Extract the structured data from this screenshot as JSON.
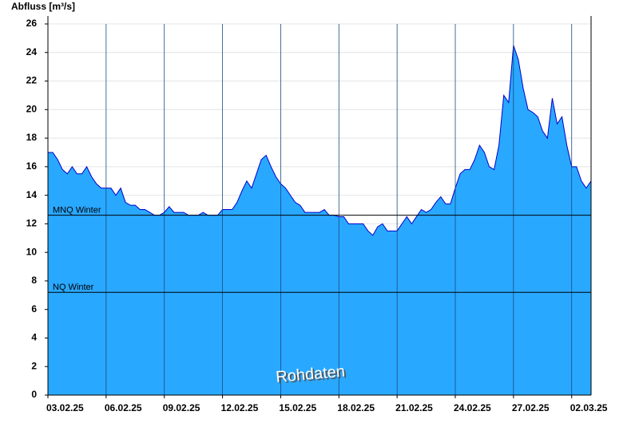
{
  "chart_data": {
    "type": "area",
    "y_label": "Abfluss [m³/s]",
    "watermark": "Rohdaten",
    "x": [
      "2025-02-03T00:00",
      "2025-02-03T06:00",
      "2025-02-03T12:00",
      "2025-02-03T18:00",
      "2025-02-04T00:00",
      "2025-02-04T06:00",
      "2025-02-04T12:00",
      "2025-02-04T18:00",
      "2025-02-05T00:00",
      "2025-02-05T06:00",
      "2025-02-05T12:00",
      "2025-02-05T18:00",
      "2025-02-06T00:00",
      "2025-02-06T06:00",
      "2025-02-06T12:00",
      "2025-02-06T18:00",
      "2025-02-07T00:00",
      "2025-02-07T06:00",
      "2025-02-07T12:00",
      "2025-02-07T18:00",
      "2025-02-08T00:00",
      "2025-02-08T06:00",
      "2025-02-08T12:00",
      "2025-02-08T18:00",
      "2025-02-09T00:00",
      "2025-02-09T06:00",
      "2025-02-09T12:00",
      "2025-02-09T18:00",
      "2025-02-10T00:00",
      "2025-02-10T06:00",
      "2025-02-10T12:00",
      "2025-02-10T18:00",
      "2025-02-11T00:00",
      "2025-02-11T06:00",
      "2025-02-11T12:00",
      "2025-02-11T18:00",
      "2025-02-12T00:00",
      "2025-02-12T06:00",
      "2025-02-12T12:00",
      "2025-02-12T18:00",
      "2025-02-13T00:00",
      "2025-02-13T06:00",
      "2025-02-13T12:00",
      "2025-02-13T18:00",
      "2025-02-14T00:00",
      "2025-02-14T06:00",
      "2025-02-14T12:00",
      "2025-02-14T18:00",
      "2025-02-15T00:00",
      "2025-02-15T06:00",
      "2025-02-15T12:00",
      "2025-02-15T18:00",
      "2025-02-16T00:00",
      "2025-02-16T06:00",
      "2025-02-16T12:00",
      "2025-02-16T18:00",
      "2025-02-17T00:00",
      "2025-02-17T06:00",
      "2025-02-17T12:00",
      "2025-02-17T18:00",
      "2025-02-18T00:00",
      "2025-02-18T06:00",
      "2025-02-18T12:00",
      "2025-02-18T18:00",
      "2025-02-19T00:00",
      "2025-02-19T06:00",
      "2025-02-19T12:00",
      "2025-02-19T18:00",
      "2025-02-20T00:00",
      "2025-02-20T06:00",
      "2025-02-20T12:00",
      "2025-02-20T18:00",
      "2025-02-21T00:00",
      "2025-02-21T06:00",
      "2025-02-21T12:00",
      "2025-02-21T18:00",
      "2025-02-22T00:00",
      "2025-02-22T06:00",
      "2025-02-22T12:00",
      "2025-02-22T18:00",
      "2025-02-23T00:00",
      "2025-02-23T06:00",
      "2025-02-23T12:00",
      "2025-02-23T18:00",
      "2025-02-24T00:00",
      "2025-02-24T06:00",
      "2025-02-24T12:00",
      "2025-02-24T18:00",
      "2025-02-25T00:00",
      "2025-02-25T06:00",
      "2025-02-25T12:00",
      "2025-02-25T18:00",
      "2025-02-26T00:00",
      "2025-02-26T06:00",
      "2025-02-26T12:00",
      "2025-02-26T18:00",
      "2025-02-27T00:00",
      "2025-02-27T06:00",
      "2025-02-27T12:00",
      "2025-02-27T18:00",
      "2025-02-28T00:00",
      "2025-02-28T06:00",
      "2025-02-28T12:00",
      "2025-02-28T18:00",
      "2025-03-01T00:00",
      "2025-03-01T06:00",
      "2025-03-01T12:00",
      "2025-03-01T18:00",
      "2025-03-02T00:00",
      "2025-03-02T06:00",
      "2025-03-02T12:00",
      "2025-03-02T18:00",
      "2025-03-03T00:00"
    ],
    "values": [
      17.0,
      17.0,
      16.5,
      15.8,
      15.5,
      16.0,
      15.5,
      15.5,
      16.0,
      15.3,
      14.8,
      14.5,
      14.5,
      14.5,
      14.0,
      14.5,
      13.5,
      13.3,
      13.3,
      13.0,
      13.0,
      12.8,
      12.6,
      12.6,
      12.8,
      13.2,
      12.8,
      12.8,
      12.8,
      12.6,
      12.6,
      12.6,
      12.8,
      12.6,
      12.6,
      12.6,
      13.0,
      13.0,
      13.0,
      13.5,
      14.3,
      15.0,
      14.5,
      15.5,
      16.5,
      16.8,
      16.0,
      15.3,
      14.8,
      14.5,
      14.0,
      13.5,
      13.3,
      12.8,
      12.8,
      12.8,
      12.8,
      13.0,
      12.6,
      12.6,
      12.5,
      12.5,
      12.0,
      12.0,
      12.0,
      12.0,
      11.5,
      11.2,
      11.8,
      12.0,
      11.5,
      11.5,
      11.5,
      12.0,
      12.5,
      12.0,
      12.5,
      13.0,
      12.8,
      13.0,
      13.5,
      13.9,
      13.4,
      13.4,
      14.5,
      15.5,
      15.8,
      15.8,
      16.5,
      17.5,
      17.0,
      16.0,
      15.8,
      17.5,
      21.0,
      20.5,
      24.5,
      23.5,
      21.5,
      20.0,
      19.8,
      19.5,
      18.5,
      18.0,
      20.8,
      19.0,
      19.5,
      17.5,
      16.0,
      16.0,
      15.0,
      14.5,
      15.0
    ],
    "fill_color": "#29a8ff",
    "line_color": "#0000cc",
    "xlim": [
      "2025-02-03T00:00",
      "2025-03-03T00:00"
    ],
    "xticks": [
      {
        "value": "2025-02-03T00:00",
        "label": "03.02.25"
      },
      {
        "value": "2025-02-06T00:00",
        "label": "06.02.25"
      },
      {
        "value": "2025-02-09T00:00",
        "label": "09.02.25"
      },
      {
        "value": "2025-02-12T00:00",
        "label": "12.02.25"
      },
      {
        "value": "2025-02-15T00:00",
        "label": "15.02.25"
      },
      {
        "value": "2025-02-18T00:00",
        "label": "18.02.25"
      },
      {
        "value": "2025-02-21T00:00",
        "label": "21.02.25"
      },
      {
        "value": "2025-02-24T00:00",
        "label": "24.02.25"
      },
      {
        "value": "2025-02-27T00:00",
        "label": "27.02.25"
      },
      {
        "value": "2025-03-02T00:00",
        "label": "02.03.25"
      }
    ],
    "ylim": [
      0,
      26
    ],
    "yticks": [
      0,
      2,
      4,
      6,
      8,
      10,
      12,
      14,
      16,
      18,
      20,
      22,
      24,
      26
    ],
    "grid": true,
    "reference_lines": [
      {
        "label": "MNQ Winter",
        "value": 12.6
      },
      {
        "label": "NQ Winter",
        "value": 7.2
      }
    ]
  }
}
